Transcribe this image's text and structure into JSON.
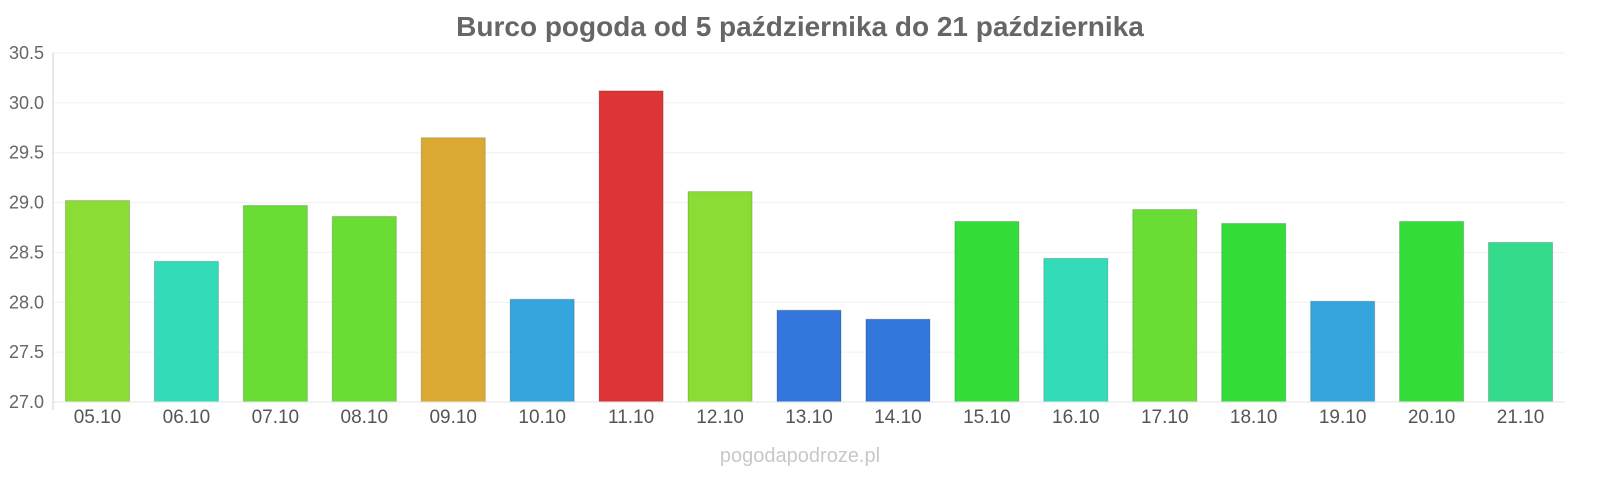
{
  "chart_data": {
    "type": "bar",
    "title": "Burco pogoda od 5 października do 21 października",
    "categories": [
      "05.10",
      "06.10",
      "07.10",
      "08.10",
      "09.10",
      "10.10",
      "11.10",
      "12.10",
      "13.10",
      "14.10",
      "15.10",
      "16.10",
      "17.10",
      "18.10",
      "19.10",
      "20.10",
      "21.10"
    ],
    "values": [
      29.02,
      28.41,
      28.97,
      28.86,
      29.65,
      28.03,
      30.12,
      29.11,
      27.92,
      27.83,
      28.81,
      28.44,
      28.93,
      28.79,
      28.01,
      28.81,
      28.6
    ],
    "colors": [
      "#8ADD35",
      "#33DBB8",
      "#6ADD35",
      "#6ADD35",
      "#DAA933",
      "#35A6DD",
      "#DD3535",
      "#8ADD35",
      "#3377DD",
      "#3377DD",
      "#35DD3A",
      "#33DBB8",
      "#6ADD35",
      "#35DD3A",
      "#35A6DD",
      "#35DD3A",
      "#33DB8A"
    ],
    "yticks": [
      "27.0",
      "27.5",
      "28.0",
      "28.5",
      "29.0",
      "29.5",
      "30.0",
      "30.5"
    ],
    "ylim": [
      27.0,
      30.5
    ],
    "grid": true,
    "source": "pogodapodroze.pl"
  }
}
